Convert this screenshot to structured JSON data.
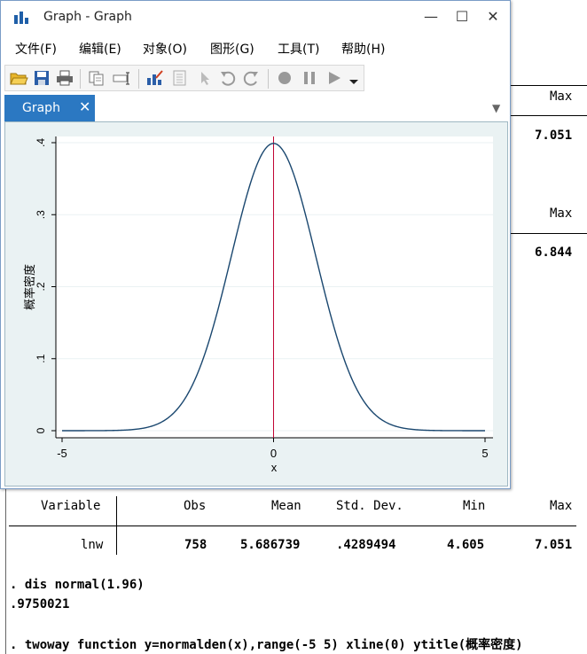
{
  "window": {
    "title": "Graph - Graph",
    "minimize": "—",
    "maximize": "☐",
    "close": "✕"
  },
  "menu": [
    "文件(F)",
    "编辑(E)",
    "对象(O)",
    "图形(G)",
    "工具(T)",
    "帮助(H)"
  ],
  "toolbar": {
    "icons": [
      "open-icon",
      "save-icon",
      "print-icon",
      "copy-icon",
      "rename-icon",
      "graph-editor-icon",
      "properties-icon",
      "pointer-icon",
      "undo-icon",
      "redo-icon",
      "record-icon",
      "pause-icon",
      "play-icon",
      "dropdown-icon"
    ]
  },
  "tab": {
    "label": "Graph",
    "close": "✕",
    "dropdown": "▼"
  },
  "chart_data": {
    "type": "line",
    "function": "y=normalden(x)",
    "x_range": [
      -5,
      5
    ],
    "xlabel": "x",
    "ylabel": "概率密度",
    "xticks": [
      "-5",
      "0",
      "5"
    ],
    "yticks": [
      ".4",
      ".3",
      ".2",
      ".1",
      "0"
    ],
    "ylim": [
      0,
      0.4
    ],
    "xline": 0,
    "series": [
      {
        "values_sampled_every_0.5": [
          1.5e-06,
          1.6e-05,
          0.000134,
          0.000873,
          0.00443,
          0.0175,
          0.054,
          0.1295,
          0.242,
          0.3521,
          0.3989,
          0.3521,
          0.242,
          0.1295,
          0.054,
          0.0175,
          0.00443,
          0.000873,
          0.000134,
          1.6e-05,
          1.5e-06
        ]
      }
    ],
    "colors": {
      "curve": "#1a476f",
      "xline": "#c10534",
      "plot_bg": "#ffffff",
      "outer_bg": "#eaf2f3",
      "grid": "#eaf2f3"
    }
  },
  "results": {
    "top_right": {
      "max1": "Max",
      "val1": "7.051",
      "max2": "Max",
      "val2": "6.844"
    },
    "table": {
      "headers": [
        "Variable",
        "Obs",
        "Mean",
        "Std. Dev.",
        "Min",
        "Max"
      ],
      "row": [
        "lnw",
        "758",
        "5.686739",
        ".4289494",
        "4.605",
        "7.051"
      ]
    },
    "cmd1": ". dis normal(1.96)",
    "out1": ".9750021",
    "cmd2": ". twoway function y=normalden(x),range(-5 5) xline(0) ytitle(概率密度)"
  }
}
